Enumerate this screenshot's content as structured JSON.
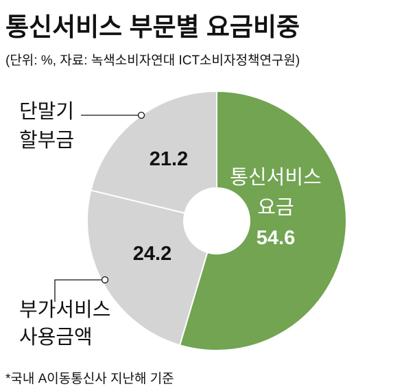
{
  "chart_data": {
    "type": "donut",
    "title": "통신서비스 부문별 요금비중",
    "subtitle": "(단위: %, 자료: 녹색소비자연대 ICT소비자정책연구원)",
    "note": "*국내 A이동통신사 지난해 기준",
    "categories": [
      "통신서비스 요금",
      "부가서비스 사용금액",
      "단말기 할부금"
    ],
    "values": [
      54.6,
      24.2,
      21.2
    ],
    "colors": [
      "#72a452",
      "#d4d4d4",
      "#d4d4d4"
    ]
  }
}
